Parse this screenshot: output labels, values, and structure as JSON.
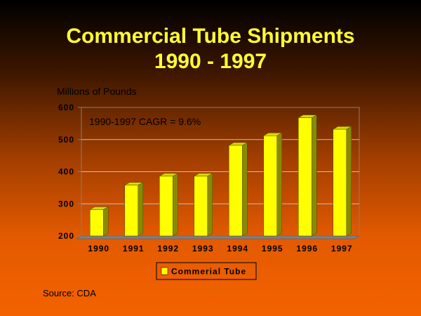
{
  "chart_data": {
    "type": "bar",
    "title": "Commercial Tube Shipments",
    "subtitle": "1990 - 1997",
    "ylabel": "Millions of Pounds",
    "xlabel": "",
    "categories": [
      "1990",
      "1991",
      "1992",
      "1993",
      "1994",
      "1995",
      "1996",
      "1997"
    ],
    "series": [
      {
        "name": "Commerial Tube",
        "values": [
          282,
          358,
          386,
          386,
          482,
          512,
          568,
          532
        ]
      }
    ],
    "ylim": [
      200,
      600
    ],
    "yticks": [
      "200",
      "300",
      "400",
      "500",
      "600"
    ],
    "grid": true,
    "legend": "bottom-center",
    "annotation": "1990-1997 CAGR = 9.6%",
    "colors": {
      "bar_front": "#ffff00",
      "bar_side": "#8a8a00",
      "bar_top": "#d9d900",
      "floor": "#808080",
      "grid": "#c0c0c0"
    }
  },
  "source": "Source: CDA"
}
